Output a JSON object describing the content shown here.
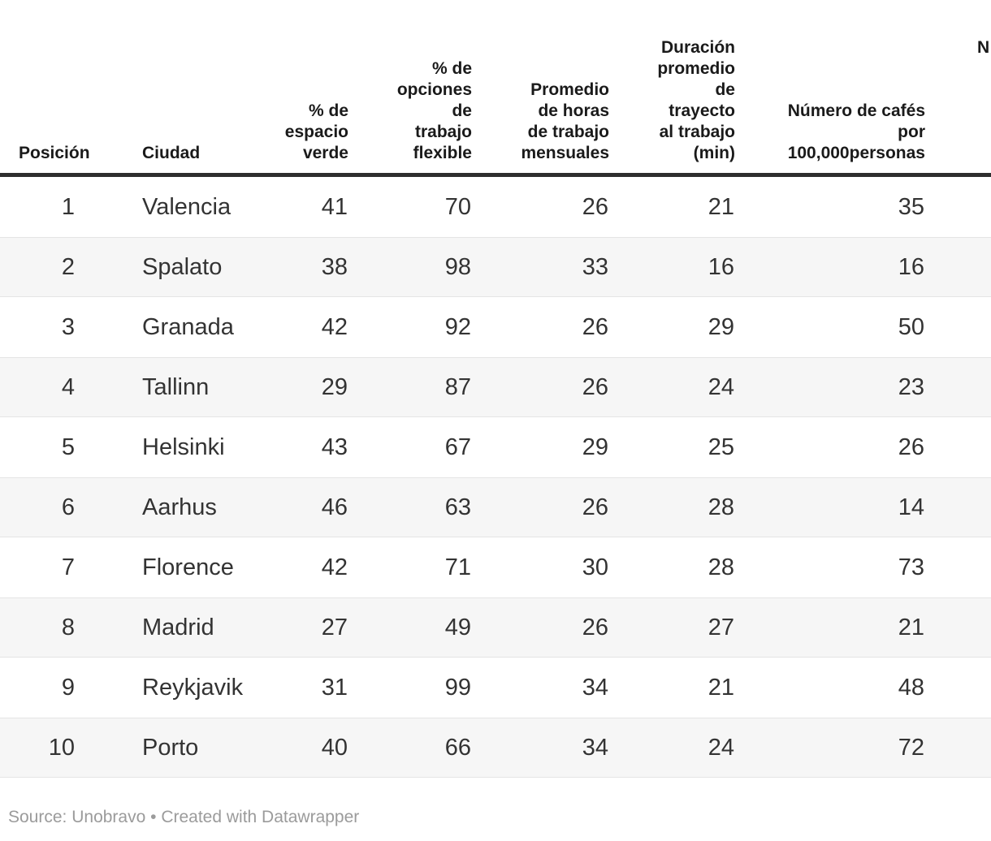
{
  "chart_data": {
    "type": "table",
    "columns": [
      "Posición",
      "Ciudad",
      "% de espacio verde",
      "% de opciones de trabajo flexible",
      "Promedio de horas de trabajo mensuales",
      "Duración promedio de trayecto al trabajo (min)",
      "Número de cafés por 100,000personas"
    ],
    "rows": [
      [
        "1",
        "Valencia",
        "41",
        "70",
        "26",
        "21",
        "35"
      ],
      [
        "2",
        "Spalato",
        "38",
        "98",
        "33",
        "16",
        "16"
      ],
      [
        "3",
        "Granada",
        "42",
        "92",
        "26",
        "29",
        "50"
      ],
      [
        "4",
        "Tallinn",
        "29",
        "87",
        "26",
        "24",
        "23"
      ],
      [
        "5",
        "Helsinki",
        "43",
        "67",
        "29",
        "25",
        "26"
      ],
      [
        "6",
        "Aarhus",
        "46",
        "63",
        "26",
        "28",
        "14"
      ],
      [
        "7",
        "Florence",
        "42",
        "71",
        "30",
        "28",
        "73"
      ],
      [
        "8",
        "Madrid",
        "27",
        "49",
        "26",
        "27",
        "21"
      ],
      [
        "9",
        "Reykjavik",
        "31",
        "99",
        "34",
        "21",
        "48"
      ],
      [
        "10",
        "Porto",
        "40",
        "66",
        "34",
        "24",
        "72"
      ]
    ],
    "layout_hints": {
      "striped_rows": true,
      "numeric_columns_right_aligned": true,
      "last_column_cut_off_fragment": "N"
    }
  },
  "table": {
    "headers": [
      {
        "label": "Posición"
      },
      {
        "label": "Ciudad"
      },
      {
        "label": "% de\nespacio\nverde"
      },
      {
        "label": "% de\nopciones\nde\ntrabajo\nflexible"
      },
      {
        "label": "Promedio\nde horas\nde trabajo\nmensuales"
      },
      {
        "label": "Duración\npromedio\nde\ntrayecto\nal trabajo\n(min)"
      },
      {
        "label": "Número de cafés\npor\n100,000personas"
      },
      {
        "label": "N"
      }
    ]
  },
  "footer": {
    "source_label": "Source:",
    "source_name": "Unobravo",
    "separator": "•",
    "attribution": "Created with Datawrapper"
  },
  "colors": {
    "header_rule": "#2e2e2e",
    "stripe_background": "#f6f6f6",
    "stripe_border": "#e4e4e4",
    "header_text": "#1a1a1a",
    "body_text": "#333333",
    "footer_text": "#9b9b9b"
  }
}
